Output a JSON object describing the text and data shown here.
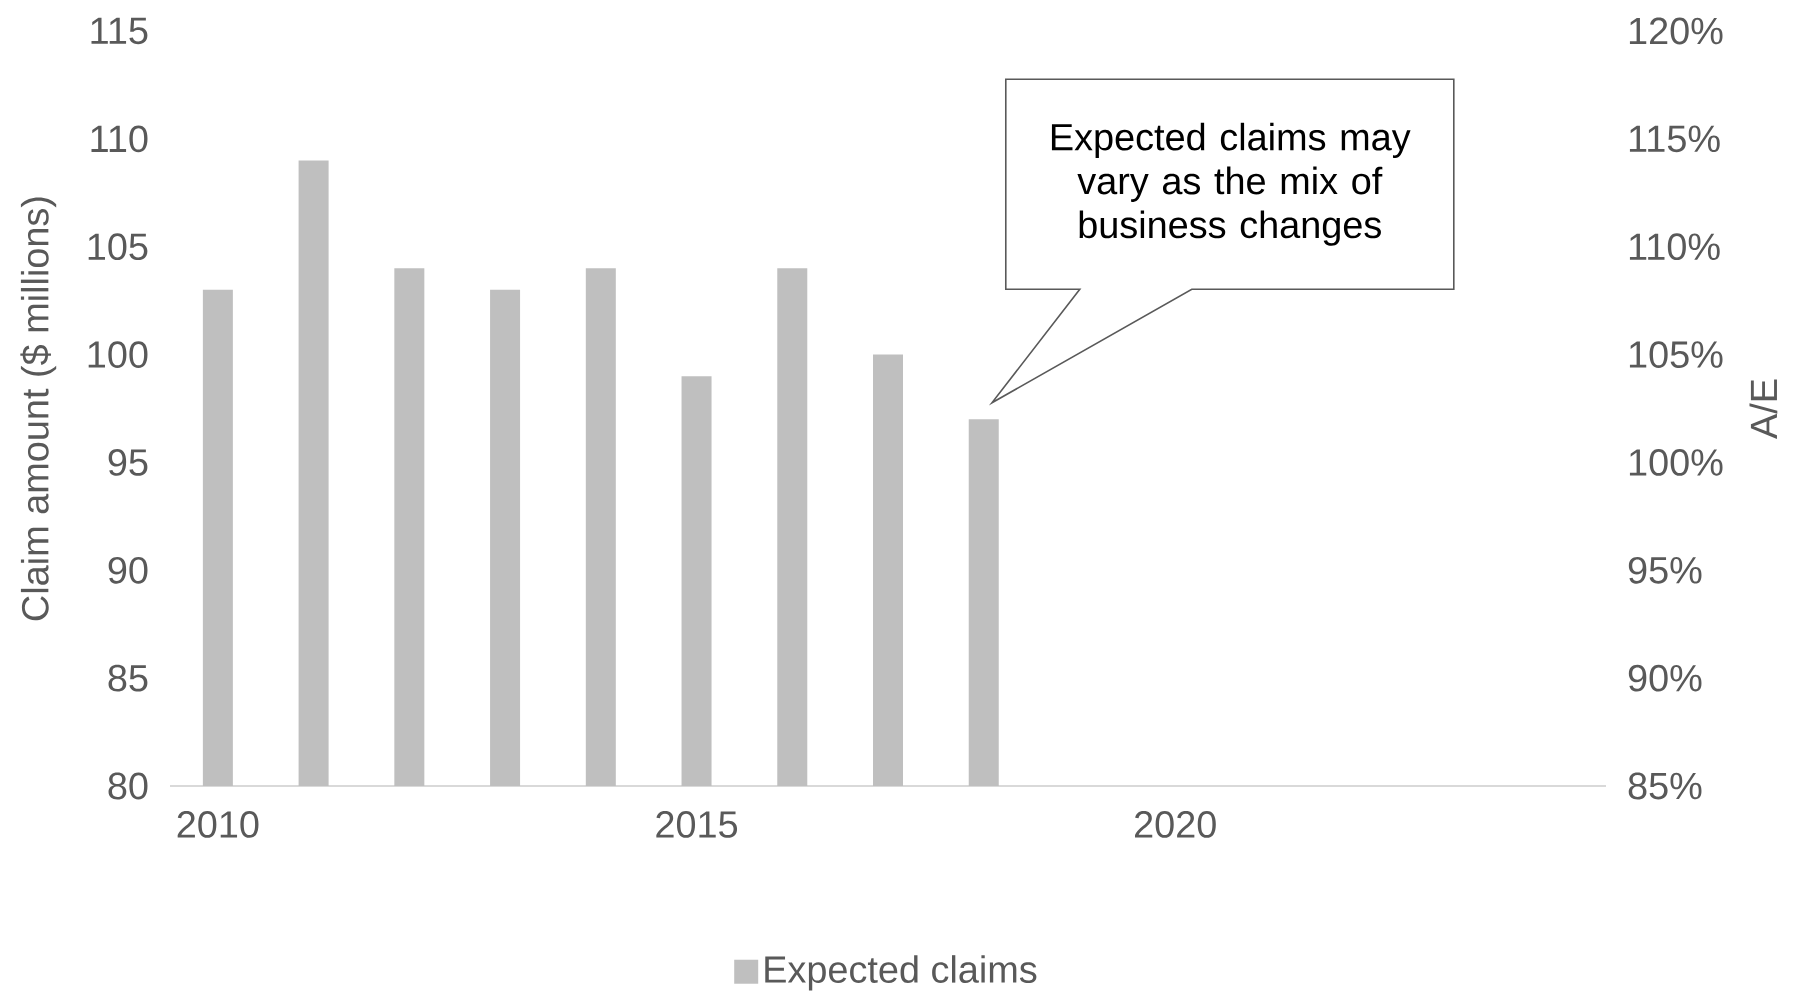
{
  "chart_data": {
    "type": "bar",
    "x": [
      2010,
      2011,
      2012,
      2013,
      2014,
      2015,
      2016,
      2017,
      2018
    ],
    "series": [
      {
        "name": "Expected claims",
        "color": "#bfbfbf",
        "values": [
          103,
          109,
          104,
          103,
          104,
          99,
          104,
          100,
          97
        ]
      }
    ],
    "xlim": [
      2009.5,
      2024.5
    ],
    "xticks": [
      2010,
      2015,
      2020
    ],
    "ylim": [
      80,
      115
    ],
    "yticks": [
      80,
      85,
      90,
      95,
      100,
      105,
      110,
      115
    ],
    "y2lim": [
      85,
      120
    ],
    "y2ticks": [
      {
        "value": 85,
        "label": "85%"
      },
      {
        "value": 90,
        "label": "90%"
      },
      {
        "value": 95,
        "label": "95%"
      },
      {
        "value": 100,
        "label": "100%"
      },
      {
        "value": 105,
        "label": "105%"
      },
      {
        "value": 110,
        "label": "110%"
      },
      {
        "value": 115,
        "label": "115%"
      },
      {
        "value": 120,
        "label": "120%"
      }
    ],
    "ylabel": "Claim amount ($ millions)",
    "y2label": "A/E",
    "annotations": [
      "Expected claims may vary as the mix of business changes"
    ],
    "legend": "bottom"
  }
}
